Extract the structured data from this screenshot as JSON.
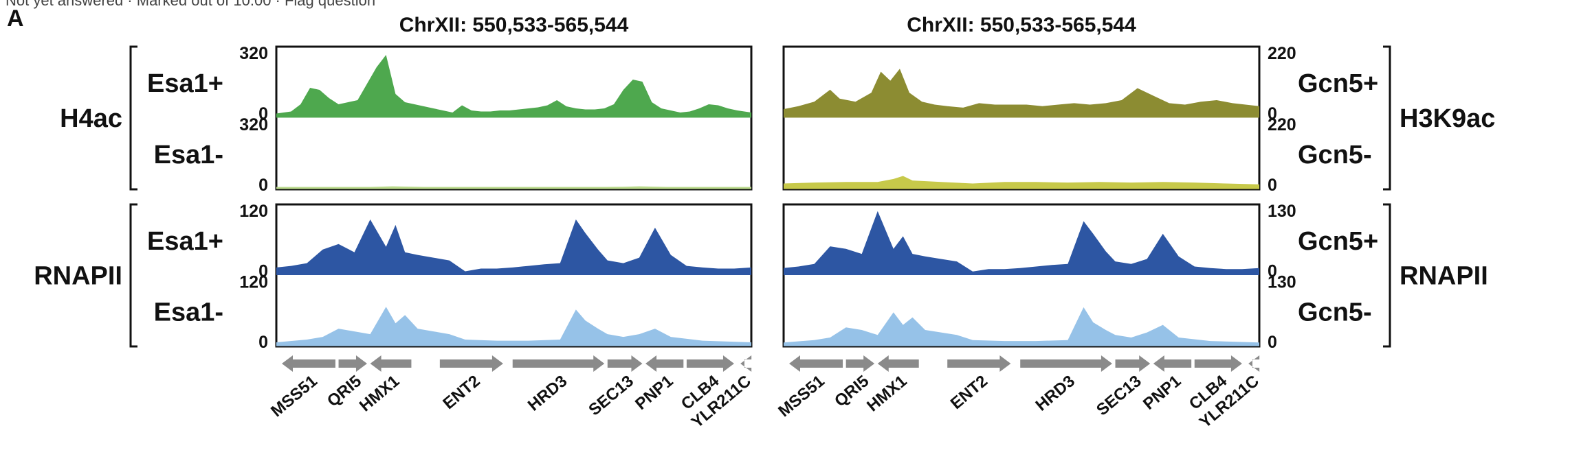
{
  "header": {
    "top_text": "Not yet answered · Marked out of 10.00 · Flag question",
    "panel_letter": "A"
  },
  "icons": {
    "flag": "flag-icon"
  },
  "colors": {
    "h4ac_plus": "#4ea84e",
    "h4ac_minus": "#b9d98a",
    "h3k9ac_plus": "#8c8c32",
    "h3k9ac_minus": "#c7c94a",
    "rnapii_plus": "#2d56a3",
    "rnapii_minus": "#96c2e8",
    "gene_arrow": "#8a8a8a",
    "frame": "#111111"
  },
  "chart_data": [
    {
      "type": "area",
      "title": "ChrXII: 550,533-565,544",
      "x_range": [
        550533,
        565544
      ],
      "groups": [
        {
          "label": "H4ac",
          "tracks": [
            {
              "name": "Esa1+",
              "ylim": [
                0,
                320
              ],
              "tick_top": "320",
              "tick_bottom": "0",
              "color_key": "h4ac_plus",
              "x": [
                550533,
                551000,
                551300,
                551600,
                551900,
                552200,
                552500,
                552800,
                553100,
                553400,
                553700,
                554000,
                554300,
                554600,
                554900,
                555200,
                555500,
                555800,
                556100,
                556400,
                556700,
                557000,
                557300,
                557600,
                557900,
                558200,
                558500,
                558800,
                559100,
                559400,
                559700,
                560000,
                560300,
                560600,
                560900,
                561200,
                561500,
                561800,
                562100,
                562400,
                562700,
                563000,
                563300,
                563600,
                563900,
                564200,
                564500,
                564800,
                565100,
                565544
              ],
              "y": [
                15,
                25,
                60,
                140,
                130,
                90,
                60,
                70,
                80,
                160,
                240,
                300,
                110,
                70,
                60,
                50,
                40,
                30,
                20,
                55,
                30,
                25,
                25,
                30,
                30,
                35,
                40,
                45,
                55,
                80,
                50,
                40,
                35,
                35,
                40,
                60,
                130,
                180,
                170,
                70,
                40,
                30,
                20,
                25,
                40,
                60,
                55,
                40,
                30,
                20
              ]
            },
            {
              "name": "Esa1-",
              "ylim": [
                0,
                320
              ],
              "tick_top": "320",
              "tick_bottom": "0",
              "color_key": "h4ac_minus",
              "x": [
                550533,
                552000,
                553500,
                554200,
                555500,
                557000,
                558500,
                560000,
                561500,
                562000,
                563500,
                565544
              ],
              "y": [
                2,
                3,
                5,
                8,
                4,
                3,
                3,
                3,
                6,
                8,
                3,
                2
              ]
            }
          ]
        },
        {
          "label": "RNAPII",
          "tracks": [
            {
              "name": "Esa1+",
              "ylim": [
                0,
                120
              ],
              "tick_top": "120",
              "tick_bottom": "0",
              "color_key": "rnapii_plus",
              "x": [
                550533,
                551000,
                551500,
                552000,
                552500,
                553000,
                553500,
                554000,
                554300,
                554600,
                555000,
                555500,
                556000,
                556500,
                557000,
                557500,
                558000,
                558500,
                559000,
                559500,
                560000,
                560300,
                560700,
                561000,
                561500,
                562000,
                562500,
                563000,
                563500,
                564000,
                564500,
                565000,
                565544
              ],
              "y": [
                12,
                15,
                20,
                45,
                55,
                40,
                100,
                50,
                90,
                40,
                35,
                30,
                25,
                5,
                10,
                10,
                12,
                15,
                18,
                20,
                100,
                75,
                45,
                25,
                20,
                30,
                85,
                35,
                15,
                12,
                10,
                10,
                12
              ]
            },
            {
              "name": "Esa1-",
              "ylim": [
                0,
                120
              ],
              "tick_top": "120",
              "tick_bottom": "0",
              "color_key": "rnapii_minus",
              "x": [
                550533,
                551500,
                552000,
                552500,
                553000,
                553500,
                554000,
                554300,
                554600,
                555000,
                555500,
                556000,
                556500,
                557500,
                558500,
                559500,
                560000,
                560300,
                560700,
                561000,
                561500,
                562000,
                562500,
                563000,
                564000,
                565544
              ],
              "y": [
                5,
                10,
                15,
                30,
                25,
                20,
                70,
                40,
                55,
                30,
                25,
                20,
                10,
                8,
                8,
                10,
                65,
                45,
                30,
                20,
                15,
                20,
                30,
                15,
                8,
                5
              ]
            }
          ]
        }
      ]
    },
    {
      "type": "area",
      "title": "ChrXII: 550,533-565,544",
      "x_range": [
        550533,
        565544
      ],
      "groups": [
        {
          "label": "H3K9ac",
          "tracks": [
            {
              "name": "Gcn5+",
              "ylim": [
                0,
                220
              ],
              "tick_top": "220",
              "tick_bottom": "0",
              "color_key": "h3k9ac_plus",
              "x": [
                550533,
                551000,
                551500,
                552000,
                552300,
                552800,
                553300,
                553600,
                553900,
                554200,
                554500,
                554900,
                555300,
                555700,
                556200,
                556700,
                557200,
                557700,
                558200,
                558700,
                559200,
                559700,
                560200,
                560700,
                561200,
                561700,
                562200,
                562700,
                563200,
                563700,
                564200,
                564700,
                565544
              ],
              "y": [
                25,
                35,
                50,
                90,
                60,
                50,
                80,
                150,
                120,
                160,
                80,
                50,
                40,
                35,
                30,
                45,
                40,
                40,
                40,
                35,
                40,
                45,
                40,
                45,
                55,
                95,
                70,
                45,
                40,
                50,
                55,
                45,
                35
              ]
            },
            {
              "name": "Gcn5-",
              "ylim": [
                0,
                220
              ],
              "tick_top": "220",
              "tick_bottom": "0",
              "color_key": "h3k9ac_minus",
              "x": [
                550533,
                551500,
                552500,
                553500,
                554000,
                554300,
                554600,
                555500,
                556500,
                557500,
                558500,
                559500,
                560500,
                561500,
                562500,
                563500,
                564500,
                565544
              ],
              "y": [
                15,
                18,
                20,
                20,
                30,
                40,
                25,
                20,
                15,
                20,
                20,
                18,
                20,
                18,
                20,
                18,
                15,
                12
              ]
            }
          ]
        },
        {
          "label": "RNAPII",
          "tracks": [
            {
              "name": "Gcn5+",
              "ylim": [
                0,
                130
              ],
              "tick_top": "130",
              "tick_bottom": "0",
              "color_key": "rnapii_plus",
              "x": [
                550533,
                551000,
                551500,
                552000,
                552500,
                553000,
                553500,
                554000,
                554300,
                554600,
                555000,
                555500,
                556000,
                556500,
                557000,
                557500,
                558000,
                558500,
                559000,
                559500,
                560000,
                560300,
                560700,
                561000,
                561500,
                562000,
                562500,
                563000,
                563500,
                564000,
                564500,
                565000,
                565544
              ],
              "y": [
                12,
                15,
                20,
                55,
                50,
                40,
                125,
                50,
                75,
                40,
                35,
                30,
                25,
                5,
                10,
                10,
                12,
                15,
                18,
                20,
                105,
                80,
                45,
                25,
                20,
                30,
                80,
                35,
                15,
                12,
                10,
                10,
                12
              ]
            },
            {
              "name": "Gcn5-",
              "ylim": [
                0,
                130
              ],
              "tick_top": "130",
              "tick_bottom": "0",
              "color_key": "rnapii_minus",
              "x": [
                550533,
                551500,
                552000,
                552500,
                553000,
                553500,
                554000,
                554300,
                554600,
                555000,
                555500,
                556000,
                556500,
                557500,
                558500,
                559500,
                560000,
                560300,
                560700,
                561000,
                561500,
                562000,
                562500,
                563000,
                564000,
                565544
              ],
              "y": [
                5,
                10,
                15,
                35,
                30,
                20,
                65,
                40,
                55,
                30,
                25,
                20,
                10,
                8,
                8,
                10,
                75,
                45,
                30,
                20,
                15,
                25,
                40,
                15,
                8,
                5
              ]
            }
          ]
        }
      ]
    }
  ],
  "genes": [
    {
      "name": "MSS51",
      "start": 550700,
      "end": 552400,
      "strand": "-"
    },
    {
      "name": "QRI5",
      "start": 552500,
      "end": 553400,
      "strand": "+"
    },
    {
      "name": "HMX1",
      "start": 553500,
      "end": 554800,
      "strand": "-"
    },
    {
      "name": "ENT2",
      "start": 555700,
      "end": 557700,
      "strand": "+"
    },
    {
      "name": "HRD3",
      "start": 558000,
      "end": 560900,
      "strand": "+"
    },
    {
      "name": "SEC13",
      "start": 561000,
      "end": 562100,
      "strand": "+"
    },
    {
      "name": "PNP1",
      "start": 562200,
      "end": 563400,
      "strand": "-"
    },
    {
      "name": "CLB4",
      "start": 563500,
      "end": 565000,
      "strand": "+"
    },
    {
      "name": "YLR211C",
      "start": 565200,
      "end": 566000,
      "strand": "-"
    }
  ]
}
